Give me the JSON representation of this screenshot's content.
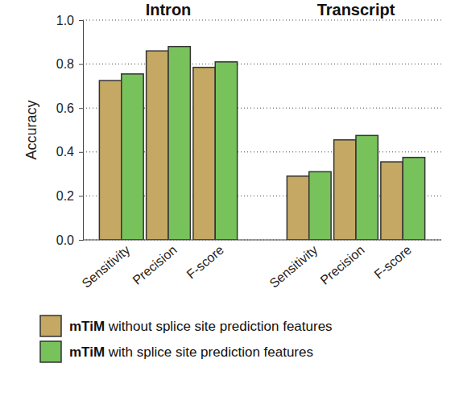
{
  "chart_data": {
    "type": "bar",
    "annotations": [
      "Intron",
      "Transcript"
    ],
    "y_label": "Accuracy",
    "categories": [
      "Sensitivity",
      "Precision",
      "F-score",
      null,
      "Sensitivity",
      "Precision",
      "F-score"
    ],
    "series": [
      {
        "name": "mTiM without splice site prediction features",
        "color": "#c4a863",
        "values": [
          0.725,
          0.86,
          0.785,
          null,
          0.29,
          0.455,
          0.355
        ]
      },
      {
        "name": "mTiM with splice site prediction features",
        "color": "#78c25c",
        "values": [
          0.755,
          0.88,
          0.81,
          null,
          0.31,
          0.475,
          0.375
        ]
      }
    ],
    "ylim": [
      0,
      1
    ],
    "yticks": [
      {
        "value": 0,
        "label": "0.0"
      },
      {
        "value": 0.2,
        "label": "0.2"
      },
      {
        "value": 0.4,
        "label": "0.4"
      },
      {
        "value": 0.6,
        "label": "0.6"
      },
      {
        "value": 0.8,
        "label": "0.8"
      },
      {
        "value": 1,
        "label": "1.0"
      }
    ],
    "grid": true,
    "legend": "bottom"
  }
}
